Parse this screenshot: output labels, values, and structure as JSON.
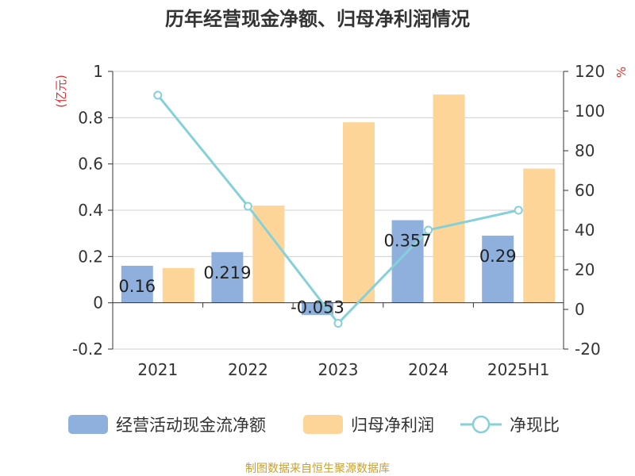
{
  "title": "历年经营现金净额、归母净利润情况",
  "source": "制图数据来自恒生聚源数据库",
  "chart_data": {
    "type": "bar+line",
    "categories": [
      "2021",
      "2022",
      "2023",
      "2024",
      "2025H1"
    ],
    "series": [
      {
        "name": "经营活动现金流净额",
        "type": "bar",
        "axis": "left",
        "color": "#8fb0dc",
        "values": [
          0.16,
          0.219,
          -0.053,
          0.357,
          0.29
        ],
        "labels": [
          "0.16",
          "0.219",
          "-0.053",
          "0.357",
          "0.29"
        ]
      },
      {
        "name": "归母净利润",
        "type": "bar",
        "axis": "left",
        "color": "#fdd599",
        "values": [
          0.15,
          0.42,
          0.78,
          0.9,
          0.58
        ]
      },
      {
        "name": "净现比",
        "type": "line",
        "axis": "right",
        "color": "#86d0d8",
        "values": [
          108,
          52,
          -7,
          40,
          50
        ]
      }
    ],
    "y_left": {
      "label": "(亿元)",
      "min": -0.2,
      "max": 1,
      "ticks": [
        -0.2,
        0,
        0.2,
        0.4,
        0.6,
        0.8,
        1
      ],
      "tick_labels": [
        "-0.2",
        "0",
        "0.2",
        "0.4",
        "0.6",
        "0.8",
        "1"
      ]
    },
    "y_right": {
      "label": "%",
      "min": -20,
      "max": 120,
      "ticks": [
        -20,
        0,
        20,
        40,
        60,
        80,
        100,
        120
      ],
      "tick_labels": [
        "-20",
        "0",
        "20",
        "40",
        "60",
        "80",
        "100",
        "120"
      ]
    },
    "grid": true,
    "legend_position": "bottom"
  }
}
